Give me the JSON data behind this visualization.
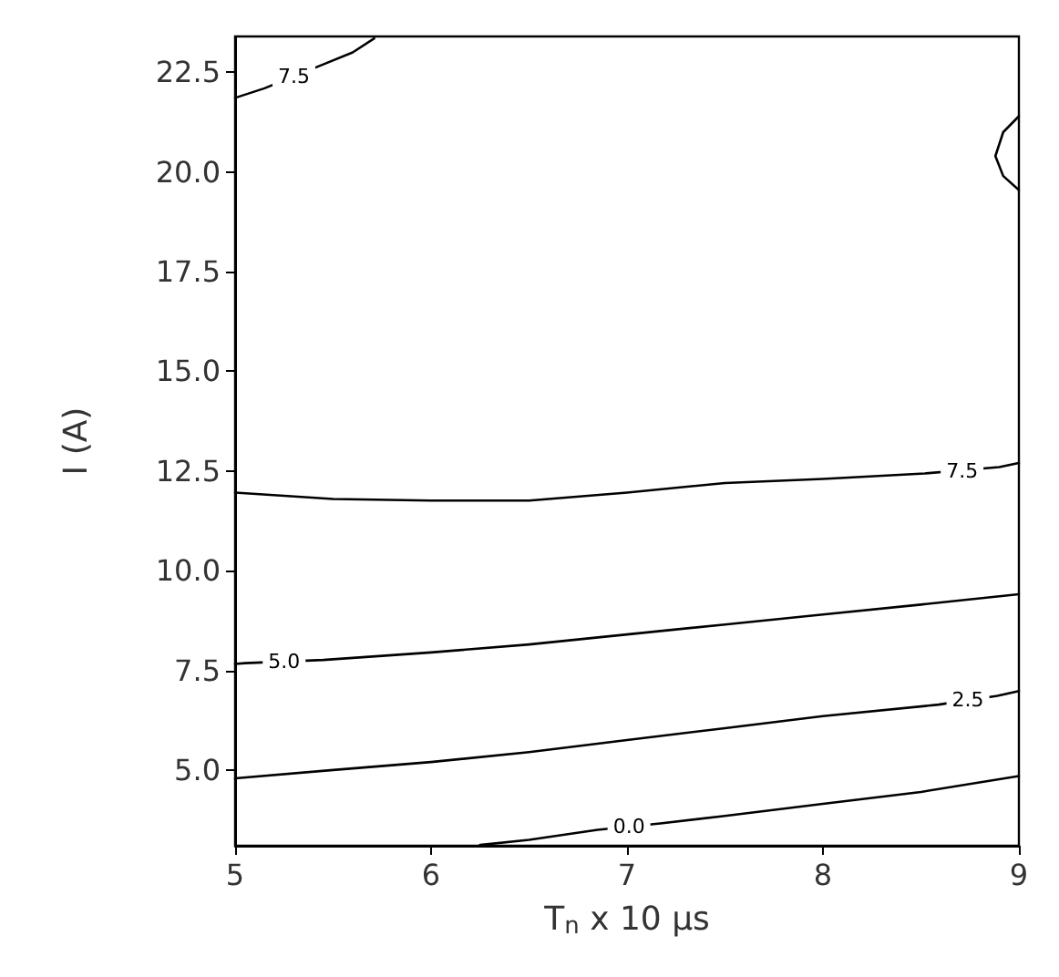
{
  "chart_data": {
    "type": "line",
    "xlabel": "T$_{n}$ x 10 µs",
    "ylabel": "I (A)",
    "xlim": [
      5,
      9
    ],
    "xticks": [
      5,
      6,
      7,
      8,
      9
    ],
    "ylim": [
      3.1,
      23.4
    ],
    "yticks": [
      {
        "value": 5,
        "label": "5.0"
      },
      7.5,
      {
        "value": 10,
        "label": "10.0"
      },
      12.5,
      {
        "value": 15,
        "label": "15.0"
      },
      17.5,
      {
        "value": 20,
        "label": "20.0"
      },
      22.5
    ],
    "grid": false,
    "marker": "none",
    "line_style": "solid",
    "series": [
      {
        "color": "#000000",
        "x": [
          5,
          5.15,
          5.45,
          5.6,
          5.71
        ],
        "values": [
          21.86,
          22.1,
          22.7,
          23.0,
          23.35
        ]
      },
      {
        "color": "#000000",
        "x": [
          5,
          5.5,
          6,
          6.5,
          7,
          7.5,
          8,
          8.52,
          8.9,
          9
        ],
        "values": [
          11.96,
          11.8,
          11.76,
          11.76,
          11.96,
          12.2,
          12.3,
          12.44,
          12.6,
          12.7
        ]
      },
      {
        "color": "#000000",
        "x": [
          9,
          8.92,
          8.88,
          8.92,
          9
        ],
        "values": [
          21.4,
          21.0,
          20.4,
          19.9,
          19.55
        ]
      },
      {
        "color": "#000000",
        "x": [
          5,
          5.05,
          5.45,
          6,
          6.5,
          7,
          7.5,
          8,
          8.5,
          9
        ],
        "values": [
          7.66,
          7.68,
          7.76,
          7.95,
          8.15,
          8.4,
          8.65,
          8.9,
          9.15,
          9.41
        ]
      },
      {
        "color": "#000000",
        "x": [
          5,
          5.5,
          6,
          6.5,
          7,
          7.5,
          8,
          8.59,
          8.89,
          9
        ],
        "values": [
          4.79,
          5.0,
          5.2,
          5.45,
          5.75,
          6.05,
          6.35,
          6.64,
          6.86,
          6.98
        ]
      },
      {
        "color": "#000000",
        "x": [
          6.25,
          6.5,
          6.85,
          7.17,
          7.5,
          8,
          8.5,
          9
        ],
        "values": [
          3.12,
          3.25,
          3.5,
          3.66,
          3.85,
          4.15,
          4.45,
          4.85
        ]
      }
    ],
    "annotations": [
      {
        "text": "7.5",
        "x": 5.3,
        "y": 22.4
      },
      {
        "text": "7.5",
        "x": 8.71,
        "y": 12.5
      },
      {
        "text": "5.0",
        "x": 5.25,
        "y": 7.72
      },
      {
        "text": "2.5",
        "x": 8.74,
        "y": 6.75
      },
      {
        "text": "0.0",
        "x": 7.01,
        "y": 3.58
      }
    ]
  }
}
